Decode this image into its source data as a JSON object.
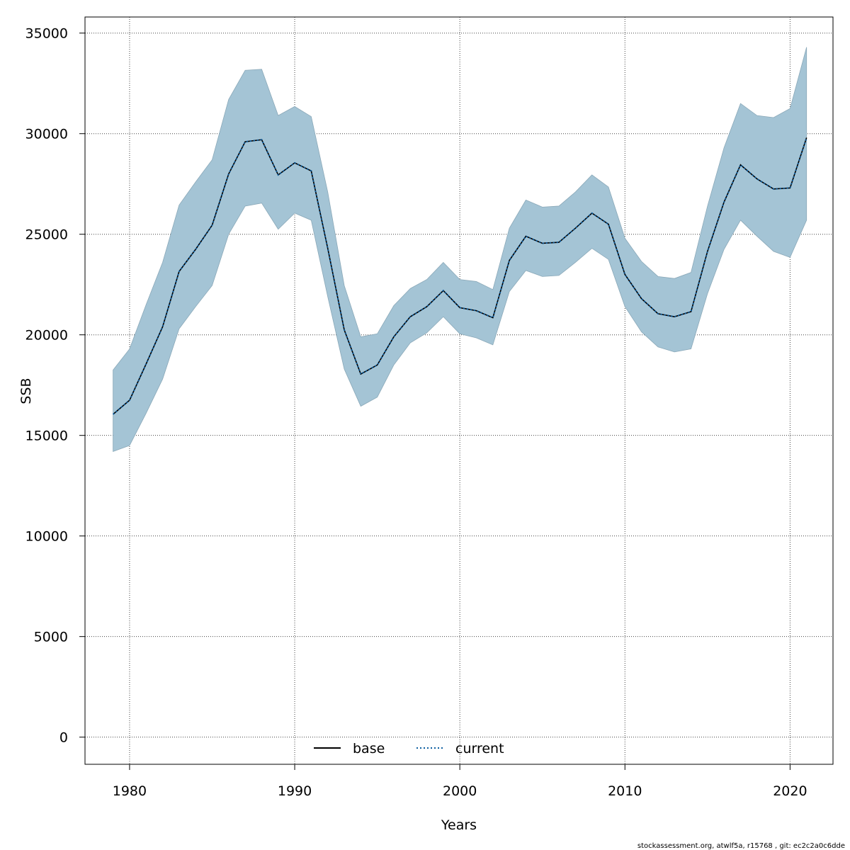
{
  "chart_data": {
    "type": "line",
    "title": "",
    "xlabel": "Years",
    "ylabel": "SSB",
    "xlim": [
      1977.3,
      2022.6
    ],
    "ylim": [
      -1350,
      35800
    ],
    "x_ticks": [
      1980,
      1990,
      2000,
      2010,
      2020
    ],
    "y_ticks": [
      0,
      5000,
      10000,
      15000,
      20000,
      25000,
      30000,
      35000
    ],
    "grid": true,
    "legend_position": "bottom-center",
    "x": [
      1979,
      1980,
      1981,
      1982,
      1983,
      1984,
      1985,
      1986,
      1987,
      1988,
      1989,
      1990,
      1991,
      1992,
      1993,
      1994,
      1995,
      1996,
      1997,
      1998,
      1999,
      2000,
      2001,
      2002,
      2003,
      2004,
      2005,
      2006,
      2007,
      2008,
      2009,
      2010,
      2011,
      2012,
      2013,
      2014,
      2015,
      2016,
      2017,
      2018,
      2019,
      2020,
      2021
    ],
    "series": [
      {
        "name": "base",
        "color": "#000000",
        "line_style": "solid",
        "values": [
          16050,
          16750,
          18550,
          20400,
          23150,
          24250,
          25450,
          28000,
          29600,
          29700,
          27950,
          28550,
          28150,
          24300,
          20250,
          18050,
          18500,
          19900,
          20900,
          21400,
          22200,
          21350,
          21200,
          20850,
          23700,
          24900,
          24550,
          24600,
          25300,
          26050,
          25500,
          23000,
          21800,
          21050,
          20900,
          21150,
          24150,
          26600,
          28450,
          27750,
          27250,
          27300,
          29800
        ],
        "lower": [
          14200,
          14500,
          16100,
          17800,
          20300,
          21400,
          22450,
          25000,
          26400,
          26550,
          25250,
          26050,
          25700,
          21900,
          18300,
          16450,
          16900,
          18500,
          19600,
          20100,
          20900,
          20050,
          19850,
          19500,
          22150,
          23200,
          22900,
          22950,
          23600,
          24300,
          23750,
          21400,
          20150,
          19400,
          19150,
          19300,
          22050,
          24250,
          25700,
          24900,
          24150,
          23850,
          25700
        ],
        "upper": [
          18250,
          19300,
          21500,
          23600,
          26450,
          27600,
          28700,
          31700,
          33150,
          33200,
          30900,
          31350,
          30850,
          27100,
          22450,
          19900,
          20050,
          21450,
          22300,
          22750,
          23600,
          22750,
          22650,
          22250,
          25300,
          26700,
          26350,
          26400,
          27100,
          27950,
          27350,
          24800,
          23650,
          22900,
          22800,
          23100,
          26400,
          29300,
          31500,
          30900,
          30800,
          31250,
          34300
        ]
      },
      {
        "name": "current",
        "color": "#0f5fa0",
        "line_style": "dotted",
        "values": [
          16050,
          16750,
          18550,
          20400,
          23150,
          24250,
          25450,
          28000,
          29600,
          29700,
          27950,
          28550,
          28150,
          24300,
          20250,
          18050,
          18500,
          19900,
          20900,
          21400,
          22200,
          21350,
          21200,
          20850,
          23700,
          24900,
          24550,
          24600,
          25300,
          26050,
          25500,
          23000,
          21800,
          21050,
          20900,
          21150,
          24150,
          26600,
          28450,
          27750,
          27250,
          27300,
          29800
        ]
      }
    ],
    "band_color": "#a4c4d5"
  },
  "footer": {
    "text": "stockassessment.org, atwlf5a, r15768 , git: ec2c2a0c6dde"
  }
}
